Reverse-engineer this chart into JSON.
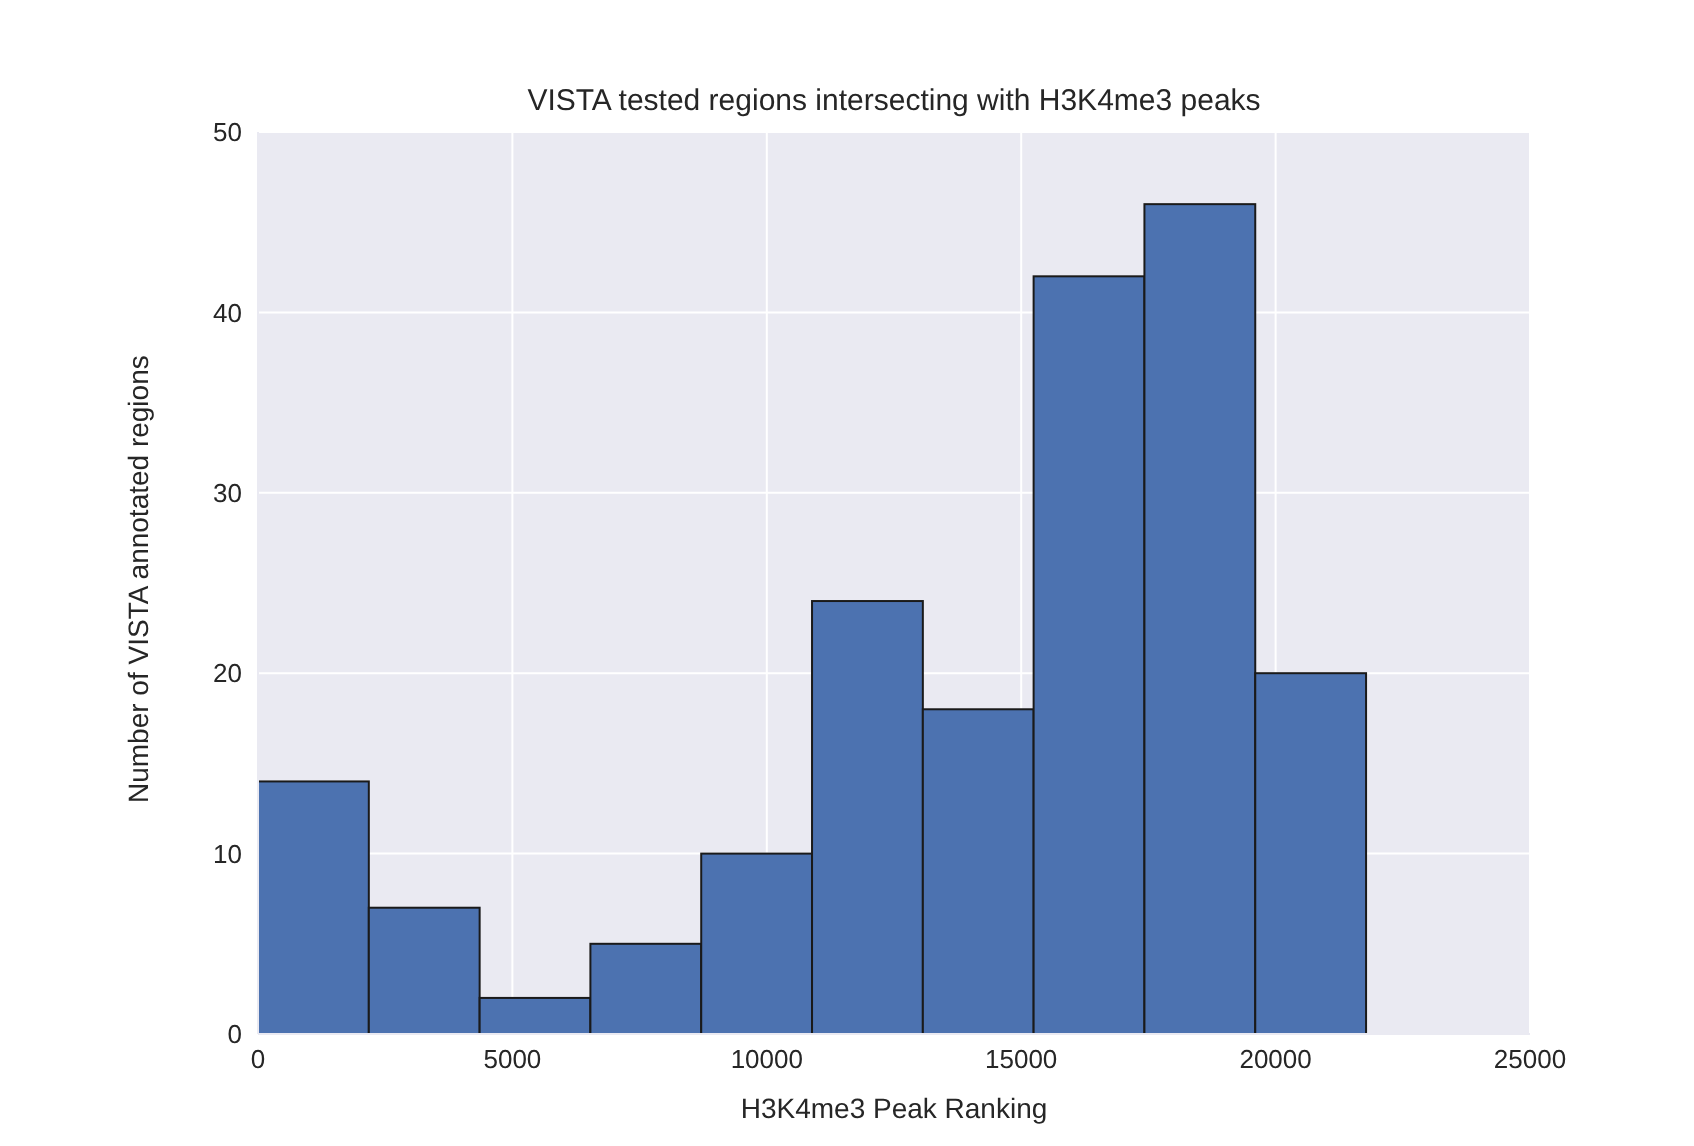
{
  "chart_data": {
    "type": "histogram",
    "title": "VISTA tested regions intersecting with H3K4me3 peaks",
    "xlabel": "H3K4me3 Peak Ranking",
    "ylabel": "Number of VISTA annotated regions",
    "bins": [
      0,
      2178,
      4356,
      6533,
      8711,
      10889,
      13067,
      15244,
      17422,
      19600,
      21778
    ],
    "values": [
      14,
      7,
      2,
      5,
      10,
      24,
      18,
      42,
      46,
      20
    ],
    "color": "#4c72b0",
    "xlim": [
      0,
      25000
    ],
    "xticks": [
      0,
      5000,
      10000,
      15000,
      20000,
      25000
    ],
    "ylim": [
      0,
      50
    ],
    "yticks": [
      0,
      10,
      20,
      30,
      40,
      50
    ],
    "grid": true
  }
}
